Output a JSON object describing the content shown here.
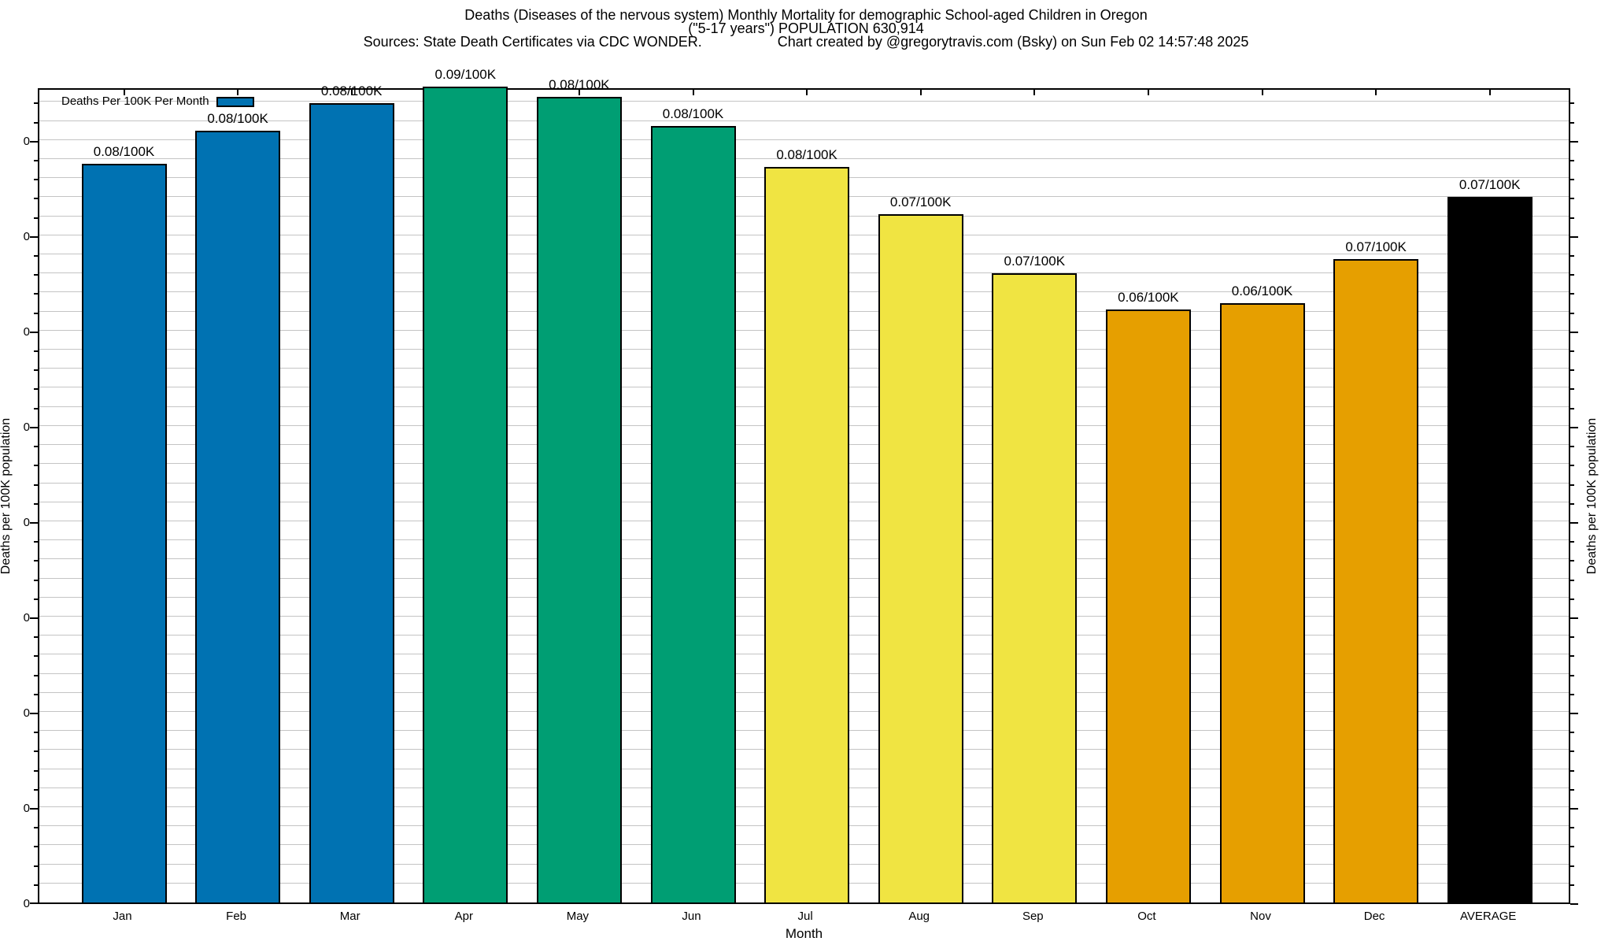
{
  "title": {
    "line1": "Deaths (Diseases of the nervous system) Monthly Mortality for demographic School-aged Children in Oregon",
    "line2": "(\"5-17 years\") POPULATION 630,914",
    "line3_left": "Sources: State Death Certificates via CDC WONDER.",
    "line3_right": "Chart created by @gregorytravis.com (Bsky) on Sun Feb 02 14:57:48 2025"
  },
  "legend": {
    "label": "Deaths Per 100K Per Month",
    "swatch_color": "#0072B2"
  },
  "axes": {
    "xlabel": "Month",
    "ylabel_left": "Deaths per 100K population",
    "ylabel_right": "Deaths per 100K population",
    "y_tick_label_text": "0",
    "ymax": 0.0856,
    "ymin": 0,
    "y_minor_step": 0.002,
    "y_majors_per_minor": 5,
    "grid": "on"
  },
  "chart_data": {
    "type": "bar",
    "title": "Deaths (Diseases of the nervous system) Monthly Mortality for demographic School-aged Children in Oregon (\"5-17 years\") POPULATION 630,914",
    "xlabel": "Month",
    "ylabel": "Deaths per 100K population",
    "ylim": [
      0,
      0.0856
    ],
    "legend_entries": [
      "Deaths Per 100K Per Month"
    ],
    "legend_position": "top-left-inside",
    "grid": "on",
    "categories": [
      "Jan",
      "Feb",
      "Mar",
      "Apr",
      "May",
      "Jun",
      "Jul",
      "Aug",
      "Sep",
      "Oct",
      "Nov",
      "Dec",
      "AVERAGE"
    ],
    "values": [
      0.0775,
      0.081,
      0.0839,
      0.0856,
      0.0845,
      0.0815,
      0.0772,
      0.0722,
      0.066,
      0.0622,
      0.0629,
      0.0675,
      0.074
    ],
    "bar_labels": [
      "0.08/100K",
      "0.08/100K",
      "0.08/100K",
      "0.09/100K",
      "0.08/100K",
      "0.08/100K",
      "0.08/100K",
      "0.07/100K",
      "0.07/100K",
      "0.06/100K",
      "0.06/100K",
      "0.07/100K",
      "0.07/100K"
    ],
    "bar_colors": [
      "#0072B2",
      "#0072B2",
      "#0072B2",
      "#009E73",
      "#009E73",
      "#009E73",
      "#F0E442",
      "#F0E442",
      "#F0E442",
      "#E69F00",
      "#E69F00",
      "#E69F00",
      "#000000"
    ],
    "y_axis_tick_labels": [
      "0",
      "0",
      "0",
      "0",
      "0",
      "0",
      "0",
      "0",
      "0"
    ]
  },
  "colors": {
    "blue_jan_mar": "#0072B2",
    "green_apr_jun": "#009E73",
    "yellow_jul_sep": "#F0E442",
    "orange_oct_dec": "#E69F00",
    "average_black": "#000000",
    "gridline": "#c4c4c4",
    "frame": "#000000",
    "background": "#ffffff"
  }
}
